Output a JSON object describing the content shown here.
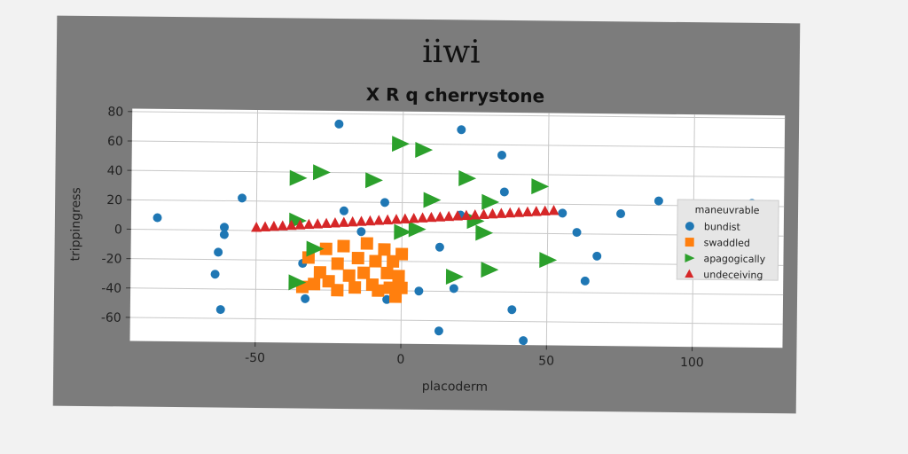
{
  "chart_data": {
    "type": "scatter",
    "suptitle": "iiwi",
    "title": "X R q cherrystone",
    "xlabel": "placoderm",
    "ylabel": "trippingress",
    "xlim": [
      -93,
      131
    ],
    "ylim": [
      -76,
      82
    ],
    "xticks": [
      -50,
      0,
      50,
      100
    ],
    "yticks": [
      -60,
      -40,
      -20,
      0,
      20,
      40,
      60,
      80
    ],
    "grid": true,
    "legend": {
      "title": "maneuvrable",
      "position": "right",
      "entries": [
        "bundist",
        "swaddled",
        "apagogically",
        "undeceiving"
      ]
    },
    "series": [
      {
        "name": "bundist",
        "marker": "circle",
        "color": "#1f77b4",
        "points": [
          [
            -84,
            8
          ],
          [
            -55,
            22
          ],
          [
            -61,
            2
          ],
          [
            -61,
            -3
          ],
          [
            -63,
            -15
          ],
          [
            -64,
            -30
          ],
          [
            -62,
            -54
          ],
          [
            -22,
            73
          ],
          [
            -20,
            14
          ],
          [
            -6,
            20
          ],
          [
            -33,
            -46
          ],
          [
            -34,
            -22
          ],
          [
            -14,
            0
          ],
          [
            -5,
            -46
          ],
          [
            6,
            -40
          ],
          [
            20,
            70
          ],
          [
            34,
            53
          ],
          [
            35,
            28
          ],
          [
            20,
            12
          ],
          [
            13,
            -10
          ],
          [
            18,
            -38
          ],
          [
            13,
            -67
          ],
          [
            38,
            -52
          ],
          [
            42,
            -73
          ],
          [
            55,
            14
          ],
          [
            60,
            1
          ],
          [
            67,
            -15
          ],
          [
            63,
            -32
          ],
          [
            75,
            14
          ],
          [
            88,
            23
          ],
          [
            96,
            0
          ],
          [
            120,
            22
          ]
        ]
      },
      {
        "name": "swaddled",
        "marker": "square",
        "color": "#ff7f0e",
        "points": [
          [
            -34,
            -38
          ],
          [
            -32,
            -18
          ],
          [
            -30,
            -36
          ],
          [
            -28,
            -28
          ],
          [
            -26,
            -12
          ],
          [
            -25,
            -34
          ],
          [
            -22,
            -22
          ],
          [
            -22,
            -40
          ],
          [
            -20,
            -10
          ],
          [
            -18,
            -30
          ],
          [
            -16,
            -38
          ],
          [
            -15,
            -18
          ],
          [
            -13,
            -28
          ],
          [
            -12,
            -8
          ],
          [
            -10,
            -36
          ],
          [
            -9,
            -20
          ],
          [
            -8,
            -40
          ],
          [
            -6,
            -12
          ],
          [
            -5,
            -28
          ],
          [
            -4,
            -38
          ],
          [
            -3,
            -20
          ],
          [
            -2,
            -44
          ],
          [
            -1,
            -30
          ],
          [
            0,
            -38
          ],
          [
            0,
            -15
          ]
        ]
      },
      {
        "name": "apagogically",
        "marker": "triangle-right",
        "color": "#2ca02c",
        "points": [
          [
            -36,
            36
          ],
          [
            -28,
            40
          ],
          [
            -10,
            35
          ],
          [
            -1,
            60
          ],
          [
            7,
            56
          ],
          [
            10,
            22
          ],
          [
            22,
            37
          ],
          [
            30,
            21
          ],
          [
            47,
            32
          ],
          [
            -36,
            7
          ],
          [
            -36,
            -35
          ],
          [
            0,
            0
          ],
          [
            5,
            2
          ],
          [
            18,
            -30
          ],
          [
            28,
            0
          ],
          [
            30,
            -25
          ],
          [
            50,
            -18
          ],
          [
            -30,
            -12
          ],
          [
            25,
            8
          ]
        ]
      },
      {
        "name": "undeceiving",
        "marker": "triangle-up",
        "color": "#d62728",
        "points": [
          [
            -50,
            2
          ],
          [
            -47,
            2.4
          ],
          [
            -44,
            2.8
          ],
          [
            -41,
            3.2
          ],
          [
            -38,
            3.6
          ],
          [
            -35,
            4.0
          ],
          [
            -32,
            4.4
          ],
          [
            -29,
            4.8
          ],
          [
            -26,
            5.2
          ],
          [
            -23,
            5.6
          ],
          [
            -20,
            6.0
          ],
          [
            -17,
            6.4
          ],
          [
            -14,
            6.8
          ],
          [
            -11,
            7.2
          ],
          [
            -8,
            7.6
          ],
          [
            -5,
            8.0
          ],
          [
            -2,
            8.4
          ],
          [
            1,
            8.8
          ],
          [
            4,
            9.2
          ],
          [
            7,
            9.6
          ],
          [
            10,
            10.0
          ],
          [
            13,
            10.4
          ],
          [
            16,
            10.8
          ],
          [
            19,
            11.2
          ],
          [
            22,
            11.6
          ],
          [
            25,
            12.0
          ],
          [
            28,
            12.4
          ],
          [
            31,
            12.8
          ],
          [
            34,
            13.2
          ],
          [
            37,
            13.6
          ],
          [
            40,
            14.0
          ],
          [
            43,
            14.4
          ],
          [
            46,
            14.8
          ],
          [
            49,
            15.2
          ],
          [
            52,
            15.6
          ]
        ]
      }
    ]
  }
}
